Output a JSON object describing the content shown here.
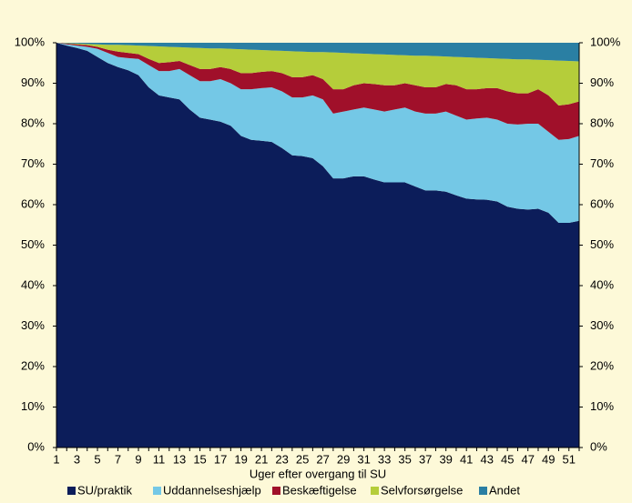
{
  "chart_data": {
    "type": "stacked_area",
    "x_label": "Uger efter overgang til SU",
    "categories": [
      1,
      null,
      3,
      null,
      5,
      null,
      7,
      null,
      9,
      null,
      11,
      null,
      13,
      null,
      15,
      null,
      17,
      null,
      19,
      null,
      21,
      null,
      23,
      null,
      25,
      null,
      27,
      null,
      29,
      null,
      31,
      null,
      33,
      null,
      35,
      null,
      37,
      null,
      39,
      null,
      41,
      null,
      43,
      null,
      45,
      null,
      47,
      null,
      49,
      null,
      51,
      null
    ],
    "series": [
      {
        "name": "SU/praktik",
        "color": "#0c1d5a",
        "values": [
          100,
          99.3,
          98.7,
          98,
          96.5,
          95,
          94,
          93.2,
          92,
          89,
          87,
          86.5,
          86,
          83.5,
          81.5,
          81,
          80.5,
          79.5,
          77,
          76,
          75.8,
          75.5,
          74,
          72.2,
          72,
          71.5,
          69.5,
          66.5,
          66.5,
          67,
          67,
          66.2,
          65.5,
          65.5,
          65.5,
          64.5,
          63.5,
          63.5,
          63.2,
          62.3,
          61.5,
          61.3,
          61.2,
          60.8,
          59.5,
          59,
          58.8,
          59,
          58,
          55.5,
          55.5,
          56
        ]
      },
      {
        "name": "Uddannelseshjælp",
        "color": "#74c8e6",
        "values": [
          0,
          0.3,
          0.6,
          1.0,
          2.0,
          2.5,
          2.5,
          3.0,
          4.0,
          5.5,
          6.0,
          6.5,
          7.5,
          8.5,
          9.0,
          9.5,
          10.5,
          10.5,
          11.5,
          12.5,
          13.0,
          13.5,
          14.0,
          14.3,
          14.5,
          15.5,
          16.5,
          16.0,
          16.5,
          16.5,
          17.0,
          17.3,
          17.5,
          18.0,
          18.5,
          18.5,
          19.0,
          19.0,
          19.8,
          19.7,
          19.5,
          20.0,
          20.3,
          20.2,
          20.5,
          20.8,
          21.2,
          21.0,
          20.0,
          20.5,
          20.7,
          21.0
        ]
      },
      {
        "name": "Beskæftigelse",
        "color": "#a0102a",
        "values": [
          0,
          0.2,
          0.3,
          0.4,
          0.5,
          0.8,
          1.3,
          1.3,
          1.2,
          1.5,
          2.0,
          2.2,
          2.0,
          2.5,
          3.0,
          3.0,
          3.0,
          3.5,
          4.0,
          4.0,
          4.0,
          4.0,
          4.5,
          5.0,
          5.0,
          5.0,
          5.0,
          6.0,
          5.5,
          6.0,
          6.0,
          6.3,
          6.5,
          6.0,
          6.0,
          6.5,
          6.5,
          6.5,
          6.8,
          7.5,
          7.5,
          7.2,
          7.3,
          7.8,
          8.0,
          7.7,
          7.5,
          8.5,
          9.0,
          8.5,
          8.6,
          8.5
        ]
      },
      {
        "name": "Selvforsørgelse",
        "color": "#b5cd3a",
        "values": [
          0,
          0.1,
          0.2,
          0.3,
          0.6,
          1.2,
          1.7,
          1.9,
          2.1,
          3.2,
          4.1,
          3.8,
          3.4,
          4.3,
          5.2,
          5.1,
          4.6,
          5.0,
          5.9,
          5.8,
          5.4,
          5.1,
          5.5,
          6.4,
          6.3,
          5.7,
          6.7,
          9.1,
          9.0,
          7.9,
          7.3,
          7.4,
          7.6,
          7.5,
          6.9,
          7.3,
          7.8,
          7.7,
          6.8,
          7.0,
          7.9,
          7.8,
          7.4,
          7.3,
          8.0,
          8.4,
          8.4,
          7.3,
          8.7,
          11.1,
          10.7,
          9.9
        ]
      },
      {
        "name": "Andet",
        "color": "#2a7fa3",
        "values": [
          0,
          0.1,
          0.2,
          0.3,
          0.4,
          0.5,
          0.5,
          0.6,
          0.7,
          0.8,
          0.9,
          1.0,
          1.1,
          1.2,
          1.3,
          1.4,
          1.4,
          1.5,
          1.6,
          1.7,
          1.8,
          1.9,
          2.0,
          2.1,
          2.2,
          2.3,
          2.3,
          2.4,
          2.5,
          2.6,
          2.7,
          2.8,
          2.9,
          3.0,
          3.1,
          3.2,
          3.2,
          3.3,
          3.4,
          3.5,
          3.6,
          3.7,
          3.8,
          3.9,
          4.0,
          4.1,
          4.1,
          4.2,
          4.3,
          4.4,
          4.5,
          4.6
        ]
      }
    ],
    "ylim": [
      0,
      100
    ],
    "yticks": [
      {
        "value": 0,
        "label": "0%"
      },
      {
        "value": 10,
        "label": "10%"
      },
      {
        "value": 20,
        "label": "20%"
      },
      {
        "value": 30,
        "label": "30%"
      },
      {
        "value": 40,
        "label": "40%"
      },
      {
        "value": 50,
        "label": "50%"
      },
      {
        "value": 60,
        "label": "60%"
      },
      {
        "value": 70,
        "label": "70%"
      },
      {
        "value": 80,
        "label": "80%"
      },
      {
        "value": 90,
        "label": "90%"
      },
      {
        "value": 100,
        "label": "100%"
      }
    ],
    "legend": "bottom"
  }
}
